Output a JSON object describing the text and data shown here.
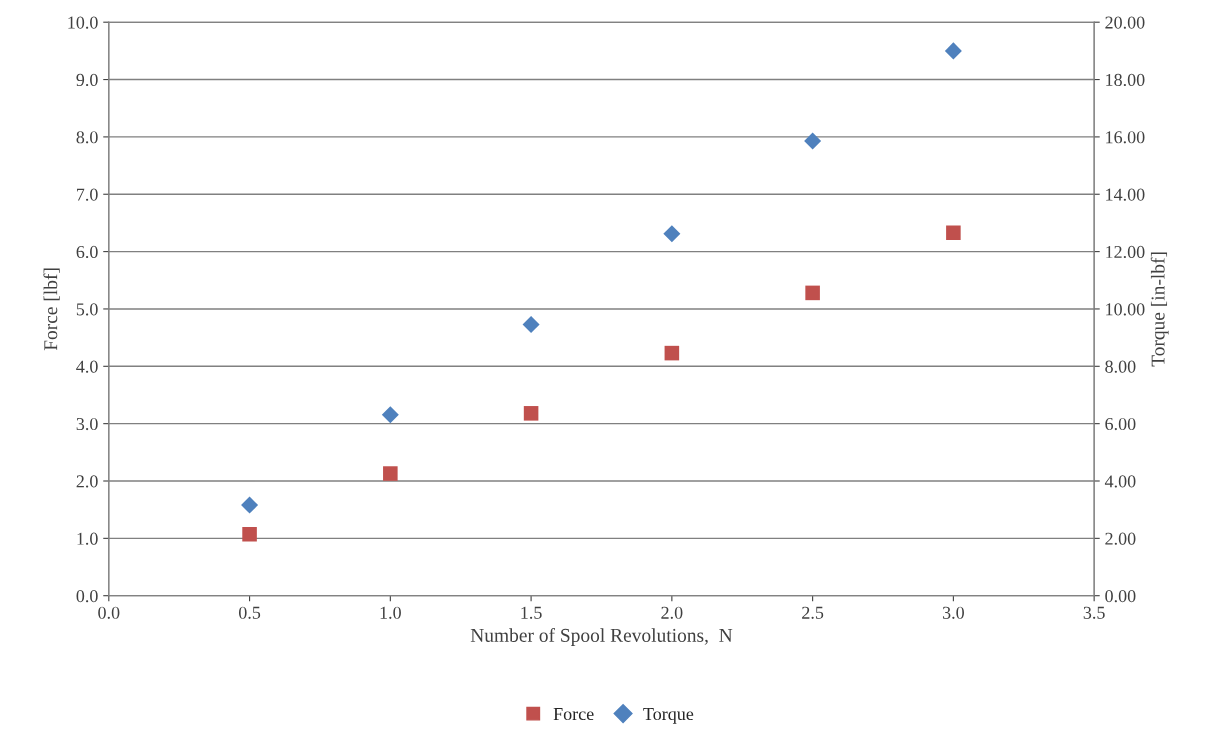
{
  "chart_data": {
    "type": "scatter",
    "xlabel": "Number of Spool Revolutions,  N",
    "ylabel": "Force [lbf]",
    "y2label": "Torque [in-lbf]",
    "x": [
      0.5,
      1.0,
      1.5,
      2.0,
      2.5,
      3.0
    ],
    "series": [
      {
        "name": "Force",
        "color": "#c0504d",
        "marker": "square",
        "values": [
          1.07,
          2.13,
          3.18,
          4.23,
          5.28,
          6.33
        ]
      },
      {
        "name": "Torque",
        "color": "#4f81bd",
        "marker": "diamond",
        "axis": "y2",
        "values": [
          3.16,
          6.31,
          9.46,
          12.62,
          15.86,
          19.0
        ]
      }
    ],
    "xlim": [
      0,
      3.5
    ],
    "xticks": [
      {
        "value": 0,
        "label": "0.0"
      },
      {
        "value": 0.5,
        "label": "0.5"
      },
      {
        "value": 1,
        "label": "1.0"
      },
      {
        "value": 1.5,
        "label": "1.5"
      },
      {
        "value": 2,
        "label": "2.0"
      },
      {
        "value": 2.5,
        "label": "2.5"
      },
      {
        "value": 3,
        "label": "3.0"
      },
      {
        "value": 3.5,
        "label": "3.5"
      }
    ],
    "ylim": [
      0,
      10
    ],
    "yticks": [
      {
        "value": 0,
        "label": "0.0"
      },
      {
        "value": 1,
        "label": "1.0"
      },
      {
        "value": 2,
        "label": "2.0"
      },
      {
        "value": 3,
        "label": "3.0"
      },
      {
        "value": 4,
        "label": "4.0"
      },
      {
        "value": 5,
        "label": "5.0"
      },
      {
        "value": 6,
        "label": "6.0"
      },
      {
        "value": 7,
        "label": "7.0"
      },
      {
        "value": 8,
        "label": "8.0"
      },
      {
        "value": 9,
        "label": "9.0"
      },
      {
        "value": 10,
        "label": "10.0"
      }
    ],
    "y2lim": [
      0,
      20
    ],
    "y2ticks": [
      {
        "value": 0,
        "label": "0.00"
      },
      {
        "value": 2,
        "label": "2.00"
      },
      {
        "value": 4,
        "label": "4.00"
      },
      {
        "value": 6,
        "label": "6.00"
      },
      {
        "value": 8,
        "label": "8.00"
      },
      {
        "value": 10,
        "label": "10.00"
      },
      {
        "value": 12,
        "label": "12.00"
      },
      {
        "value": 14,
        "label": "14.00"
      },
      {
        "value": 16,
        "label": "16.00"
      },
      {
        "value": 18,
        "label": "18.00"
      },
      {
        "value": 20,
        "label": "20.00"
      }
    ],
    "grid": "y",
    "legend": "bottom"
  }
}
